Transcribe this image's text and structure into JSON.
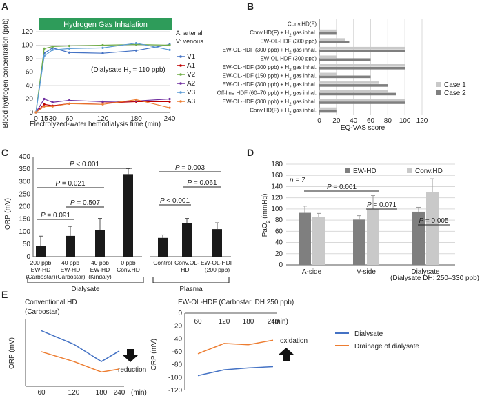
{
  "panels": {
    "A": "A",
    "B": "B",
    "C": "C",
    "D": "D",
    "E": "E"
  },
  "chart_data": [
    {
      "id": "A",
      "type": "line",
      "banner": "Hydrogen Gas Inhalation",
      "legend_notes": [
        "A: arterial",
        "V: venous"
      ],
      "annotation": "(Dialysate H",
      "annotation_sub": "2",
      "annotation_tail": "= 110 ppb)",
      "xlabel": "Electrolyzed-water hemodialysis time (min)",
      "ylabel": "Blood hydrogen concentration (ppb)",
      "x": [
        0,
        15,
        30,
        60,
        120,
        180,
        240
      ],
      "xlim": [
        0,
        240
      ],
      "ylim": [
        0,
        120
      ],
      "yticks": [
        0,
        20,
        40,
        60,
        80,
        100,
        120
      ],
      "series": [
        {
          "name": "V1",
          "color": "#4472c4",
          "values": [
            0,
            88,
            96,
            89,
            88,
            92,
            101
          ]
        },
        {
          "name": "A1",
          "color": "#c00000",
          "values": [
            0,
            12,
            10,
            13,
            14,
            16,
            16
          ]
        },
        {
          "name": "V2",
          "color": "#70ad47",
          "values": [
            0,
            95,
            98,
            99,
            100,
            101,
            100
          ]
        },
        {
          "name": "A2",
          "color": "#7030a0",
          "values": [
            0,
            20,
            15,
            18,
            16,
            17,
            20
          ]
        },
        {
          "name": "V3",
          "color": "#5b9bd5",
          "values": [
            0,
            84,
            93,
            95,
            96,
            103,
            93
          ]
        },
        {
          "name": "A3",
          "color": "#ed7d31",
          "values": [
            0,
            9,
            9,
            13,
            12,
            19,
            7
          ]
        }
      ]
    },
    {
      "id": "B",
      "type": "bar",
      "orientation": "horizontal",
      "xlabel": "EQ-VAS score",
      "xlim": [
        0,
        120
      ],
      "xticks": [
        0,
        20,
        40,
        60,
        80,
        100,
        120
      ],
      "categories": [
        {
          "main": "Conv.HD(F)",
          "h2": false
        },
        {
          "main": "Conv.HD(F) + H",
          "h2": true
        },
        {
          "main": "EW-OL-HDF (300 ppb)",
          "h2": false
        },
        {
          "main": "EW-OL-HDF (300 ppb) + H",
          "h2": true
        },
        {
          "main": "EW-OL-HDF (300 ppb)",
          "h2": false
        },
        {
          "main": "EW-OL-HDF (300 ppb) + H",
          "h2": true
        },
        {
          "main": "EW-OL-HDF (150 ppb) + H",
          "h2": true
        },
        {
          "main": "EW-OL-HDF (300 ppb) + H",
          "h2": true
        },
        {
          "main": "Off-line HDF (60–70 ppb) + H",
          "h2": true
        },
        {
          "main": "EW-OL-HDF (300 ppb) + H",
          "h2": true
        },
        {
          "main": "Conv.HD(F) + H",
          "h2": true
        }
      ],
      "h2_sub": "2",
      "h2_tail": " gas inhal.",
      "series": [
        {
          "name": "Case 1",
          "color": "#c9c9c9",
          "values": [
            0,
            20,
            30,
            100,
            20,
            100,
            20,
            70,
            80,
            100,
            20
          ]
        },
        {
          "name": "Case 2",
          "color": "#7f7f7f",
          "values": [
            0,
            20,
            35,
            100,
            60,
            100,
            60,
            80,
            90,
            100,
            20
          ]
        }
      ]
    },
    {
      "id": "C",
      "type": "bar",
      "ylabel": "ORP (mV)",
      "ylim": [
        0,
        400
      ],
      "yticks": [
        0,
        50,
        100,
        150,
        200,
        250,
        300,
        350,
        400
      ],
      "categories": [
        [
          "200 ppb",
          "EW-HD",
          "(Carbostar)"
        ],
        [
          "40 ppb",
          "EW-HD",
          "(Carbostar)"
        ],
        [
          "40 ppb",
          "EW-HD",
          "(Kindaly)"
        ],
        [
          "0 ppb",
          "Conv.HD"
        ],
        [
          "Control"
        ],
        [
          "Conv.OL-",
          "HDF"
        ],
        [
          "EW-OL-HDF",
          "(200 ppb)"
        ]
      ],
      "values": [
        42,
        83,
        105,
        330,
        75,
        135,
        110
      ],
      "errors": [
        40,
        38,
        48,
        22,
        12,
        18,
        25
      ],
      "color": "#1a1a1a",
      "groups": [
        "Dialysate",
        "Plasma"
      ],
      "comparisons": [
        {
          "label": "P < 0.001",
          "from": 0,
          "to": 3
        },
        {
          "label": "P = 0.021",
          "from": 0,
          "to": 2
        },
        {
          "label": "P = 0.507",
          "from": 1,
          "to": 2
        },
        {
          "label": "P = 0.091",
          "from": 0,
          "to": 1
        },
        {
          "label": "P = 0.003",
          "from": 4,
          "to": 6
        },
        {
          "label": "P = 0.061",
          "from": 5,
          "to": 6
        },
        {
          "label": "P < 0.001",
          "from": 4,
          "to": 5
        }
      ]
    },
    {
      "id": "D",
      "type": "bar",
      "ylabel": "PaO",
      "ylabel_sub": "2",
      "ylabel_tail": " (mmHg)",
      "ylim": [
        0,
        180
      ],
      "yticks": [
        0,
        20,
        40,
        60,
        80,
        100,
        120,
        140,
        160,
        180
      ],
      "categories": [
        "A-side",
        "V-side",
        "Dialysate"
      ],
      "series": [
        {
          "name": "EW-HD",
          "color": "#7f7f7f",
          "values": [
            93,
            81,
            95
          ],
          "errors": [
            12,
            7,
            8
          ]
        },
        {
          "name": "Conv.HD",
          "color": "#c9c9c9",
          "values": [
            86,
            100,
            130
          ],
          "errors": [
            6,
            24,
            24
          ]
        }
      ],
      "n_note": "n = 7",
      "comparisons": [
        {
          "label": "P = 0.001"
        },
        {
          "label": "P = 0.071"
        },
        {
          "label": "P = 0.005"
        }
      ],
      "footnote": "(Dialysate DH: 250–330 ppb)"
    },
    {
      "id": "E1",
      "type": "line",
      "title": [
        "Conventional HD",
        "(Carbostar)"
      ],
      "ylabel": "ORP (mV)",
      "x": [
        60,
        120,
        180,
        240
      ],
      "xticks": [
        "60",
        "120",
        "180",
        "240"
      ],
      "xunit": "(min)",
      "series": [
        {
          "name": "Dialysate",
          "color": "#4472c4",
          "values": [
            470,
            380,
            265,
            335
          ]
        },
        {
          "name": "Drainage of dialysate",
          "color": "#ed7d31",
          "values": [
            330,
            265,
            195,
            215
          ]
        }
      ],
      "ylim": [
        100,
        550
      ],
      "arrow_label": "reduction"
    },
    {
      "id": "E2",
      "type": "line",
      "title": "EW-OL-HDF (Carbostar, DH 250 ppb)",
      "ylabel": "ORP (mV)",
      "x": [
        60,
        120,
        180,
        240
      ],
      "xticks": [
        "60",
        "120",
        "180",
        "240"
      ],
      "xunit": "(min)",
      "ylim": [
        -120,
        0
      ],
      "yticks": [
        0,
        -20,
        -40,
        -60,
        -80,
        -100,
        -120
      ],
      "series": [
        {
          "name": "Dialysate",
          "color": "#4472c4",
          "values": [
            -97,
            -88,
            -85,
            -83
          ]
        },
        {
          "name": "Drainage of dialysate",
          "color": "#ed7d31",
          "values": [
            -63,
            -47,
            -49,
            -42
          ]
        }
      ],
      "arrow_label": "oxidation"
    }
  ]
}
